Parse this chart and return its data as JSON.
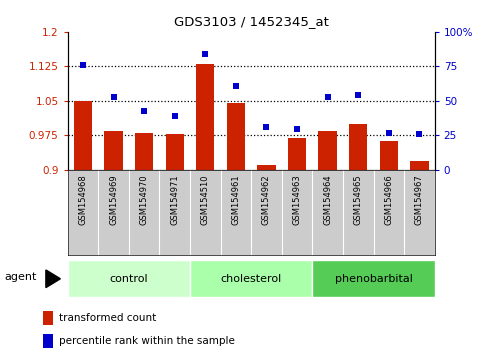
{
  "title": "GDS3103 / 1452345_at",
  "samples": [
    "GSM154968",
    "GSM154969",
    "GSM154970",
    "GSM154971",
    "GSM154510",
    "GSM154961",
    "GSM154962",
    "GSM154963",
    "GSM154964",
    "GSM154965",
    "GSM154966",
    "GSM154967"
  ],
  "red_values": [
    1.05,
    0.985,
    0.98,
    0.978,
    1.13,
    1.045,
    0.91,
    0.97,
    0.985,
    1.0,
    0.962,
    0.92
  ],
  "blue_values": [
    76,
    53,
    43,
    39,
    84,
    61,
    31,
    30,
    53,
    54,
    27,
    26
  ],
  "groups": [
    {
      "label": "control",
      "indices": [
        0,
        1,
        2,
        3
      ],
      "color": "#ccffcc"
    },
    {
      "label": "cholesterol",
      "indices": [
        4,
        5,
        6,
        7
      ],
      "color": "#aaffaa"
    },
    {
      "label": "phenobarbital",
      "indices": [
        8,
        9,
        10,
        11
      ],
      "color": "#55cc55"
    }
  ],
  "ylim_left": [
    0.9,
    1.2
  ],
  "ylim_right": [
    0,
    100
  ],
  "yticks_left": [
    0.9,
    0.975,
    1.05,
    1.125,
    1.2
  ],
  "ytick_labels_left": [
    "0.9",
    "0.975",
    "1.05",
    "1.125",
    "1.2"
  ],
  "yticks_right": [
    0,
    25,
    50,
    75,
    100
  ],
  "ytick_labels_right": [
    "0",
    "25",
    "50",
    "75",
    "100%"
  ],
  "hlines": [
    0.975,
    1.05,
    1.125
  ],
  "bar_color": "#cc2200",
  "dot_color": "#0000cc",
  "bar_width": 0.6,
  "tick_area_color": "#cccccc",
  "group_border_color": "#ffffff"
}
